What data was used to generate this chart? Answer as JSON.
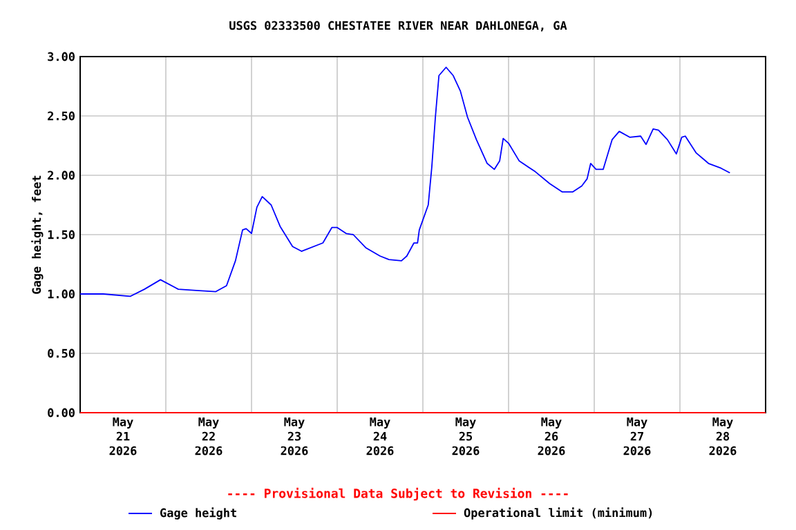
{
  "chart_data": {
    "type": "line",
    "title": "USGS 02333500 CHESTATEE RIVER NEAR DAHLONEGA, GA",
    "ylabel": "Gage height, feet",
    "annotations": [
      "---- Provisional Data Subject to Revision ----"
    ],
    "xlim": [
      "2026-05-21T00:00",
      "2026-05-29T00:00"
    ],
    "xticks": [
      {
        "value": "2026-05-21T12:00",
        "label": "May 21 2026"
      },
      {
        "value": "2026-05-22T12:00",
        "label": "May 22 2026"
      },
      {
        "value": "2026-05-23T12:00",
        "label": "May 23 2026"
      },
      {
        "value": "2026-05-24T12:00",
        "label": "May 24 2026"
      },
      {
        "value": "2026-05-25T12:00",
        "label": "May 25 2026"
      },
      {
        "value": "2026-05-26T12:00",
        "label": "May 26 2026"
      },
      {
        "value": "2026-05-27T12:00",
        "label": "May 27 2026"
      },
      {
        "value": "2026-05-28T12:00",
        "label": "May 28 2026"
      },
      {
        "value": "2026-05-22T00:00",
        "label": null
      },
      {
        "value": "2026-05-23T00:00",
        "label": null
      },
      {
        "value": "2026-05-24T00:00",
        "label": null
      },
      {
        "value": "2026-05-25T00:00",
        "label": null
      },
      {
        "value": "2026-05-26T00:00",
        "label": null
      },
      {
        "value": "2026-05-27T00:00",
        "label": null
      },
      {
        "value": "2026-05-28T00:00",
        "label": null
      }
    ],
    "ylim": [
      0,
      3
    ],
    "yticks": [
      {
        "value": 0,
        "label": "0.00"
      },
      {
        "value": 0.5,
        "label": "0.50"
      },
      {
        "value": 1,
        "label": "1.00"
      },
      {
        "value": 1.5,
        "label": "1.50"
      },
      {
        "value": 2,
        "label": "2.00"
      },
      {
        "value": 2.5,
        "label": "2.50"
      },
      {
        "value": 3,
        "label": "3.00"
      }
    ],
    "grid": true,
    "legend": "bottom",
    "series": [
      {
        "name": "Gage height",
        "color": "#0000ff",
        "x": [
          "2026-05-21T00:00",
          "2026-05-21T06:30",
          "2026-05-21T14:00",
          "2026-05-21T18:00",
          "2026-05-21T22:30",
          "2026-05-22T03:30",
          "2026-05-22T08:30",
          "2026-05-22T14:00",
          "2026-05-22T17:00",
          "2026-05-22T19:30",
          "2026-05-22T21:30",
          "2026-05-22T22:30",
          "2026-05-23T00:00",
          "2026-05-23T01:30",
          "2026-05-23T03:00",
          "2026-05-23T05:30",
          "2026-05-23T08:00",
          "2026-05-23T11:30",
          "2026-05-23T14:00",
          "2026-05-23T20:00",
          "2026-05-23T22:30",
          "2026-05-24T00:00",
          "2026-05-24T02:30",
          "2026-05-24T04:30",
          "2026-05-24T08:00",
          "2026-05-24T12:00",
          "2026-05-24T14:30",
          "2026-05-24T18:00",
          "2026-05-24T19:30",
          "2026-05-24T21:30",
          "2026-05-24T22:30",
          "2026-05-24T23:00",
          "2026-05-25T01:30",
          "2026-05-25T02:30",
          "2026-05-25T03:30",
          "2026-05-25T04:30",
          "2026-05-25T06:30",
          "2026-05-25T08:30",
          "2026-05-25T10:30",
          "2026-05-25T12:30",
          "2026-05-25T15:00",
          "2026-05-25T18:00",
          "2026-05-25T20:00",
          "2026-05-25T21:30",
          "2026-05-25T22:30",
          "2026-05-26T00:00",
          "2026-05-26T03:00",
          "2026-05-26T07:30",
          "2026-05-26T11:30",
          "2026-05-26T15:00",
          "2026-05-26T18:00",
          "2026-05-26T20:30",
          "2026-05-26T22:00",
          "2026-05-26T23:00",
          "2026-05-27T00:30",
          "2026-05-27T02:30",
          "2026-05-27T05:00",
          "2026-05-27T07:00",
          "2026-05-27T10:00",
          "2026-05-27T13:00",
          "2026-05-27T14:30",
          "2026-05-27T16:30",
          "2026-05-27T18:00",
          "2026-05-27T20:30",
          "2026-05-27T23:00",
          "2026-05-28T00:30",
          "2026-05-28T01:30",
          "2026-05-28T04:30",
          "2026-05-28T08:00",
          "2026-05-28T11:30",
          "2026-05-28T14:00"
        ],
        "values": [
          1.0,
          1.0,
          0.98,
          1.04,
          1.12,
          1.04,
          1.03,
          1.02,
          1.07,
          1.28,
          1.54,
          1.55,
          1.51,
          1.73,
          1.82,
          1.75,
          1.57,
          1.4,
          1.36,
          1.43,
          1.56,
          1.56,
          1.51,
          1.5,
          1.39,
          1.32,
          1.29,
          1.28,
          1.32,
          1.43,
          1.43,
          1.54,
          1.75,
          2.07,
          2.49,
          2.84,
          2.91,
          2.84,
          2.71,
          2.49,
          2.3,
          2.1,
          2.05,
          2.12,
          2.31,
          2.27,
          2.12,
          2.03,
          1.93,
          1.86,
          1.86,
          1.91,
          1.97,
          2.1,
          2.05,
          2.05,
          2.3,
          2.37,
          2.32,
          2.33,
          2.26,
          2.39,
          2.38,
          2.3,
          2.18,
          2.32,
          2.33,
          2.19,
          2.1,
          2.06,
          2.02
        ]
      },
      {
        "name": "Operational limit (minimum)",
        "color": "#ff0000",
        "x": [
          "2026-05-21T00:00",
          "2026-05-29T00:00"
        ],
        "values": [
          0,
          0
        ]
      }
    ]
  }
}
